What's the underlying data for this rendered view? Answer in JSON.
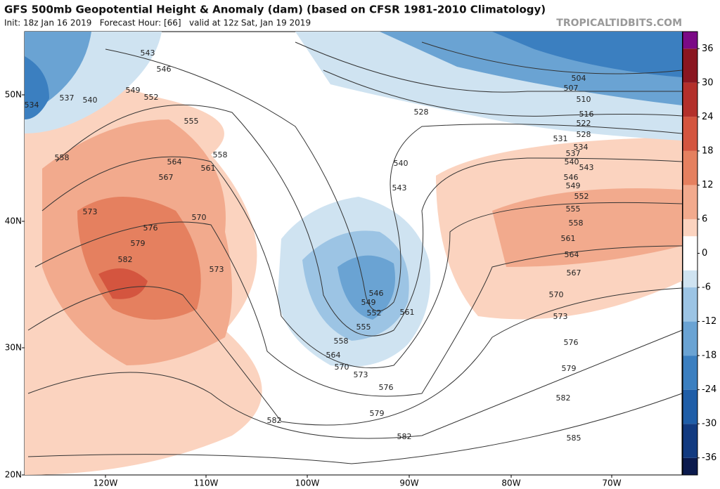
{
  "header": {
    "title": "GFS 500mb Geopotential Height & Anomaly (dam) (based on CFSR 1981-2010 Climatology)",
    "subtitle": "Init: 18z Jan 16 2019   Forecast Hour: [66]   valid at 12z Sat, Jan 19 2019",
    "site": "TROPICALTIDBITS.COM"
  },
  "map": {
    "lat_labels": [
      "50N",
      "40N",
      "30N",
      "20N"
    ],
    "lon_labels": [
      "120W",
      "110W",
      "100W",
      "90W",
      "80W",
      "70W"
    ],
    "contour_labels": [
      "543",
      "546",
      "549",
      "552",
      "537",
      "540",
      "534",
      "555",
      "558",
      "558",
      "564",
      "561",
      "567",
      "573",
      "570",
      "576",
      "579",
      "582",
      "573",
      "528",
      "504",
      "507",
      "510",
      "516",
      "522",
      "528",
      "531",
      "534",
      "537",
      "540",
      "543",
      "546",
      "549",
      "552",
      "555",
      "558",
      "561",
      "564",
      "567",
      "570",
      "573",
      "540",
      "543",
      "546",
      "549",
      "552",
      "555",
      "558",
      "561",
      "564",
      "570",
      "573",
      "576",
      "579",
      "582",
      "582",
      "576",
      "579",
      "582",
      "585"
    ]
  },
  "colorbar": {
    "lim": [
      -39,
      39
    ],
    "ticks": [
      36,
      30,
      24,
      18,
      12,
      6,
      0,
      -6,
      -12,
      -18,
      -24,
      -30,
      -36
    ],
    "levels": [
      -39,
      -36,
      -30,
      -24,
      -18,
      -12,
      -6,
      -3,
      3,
      6,
      12,
      18,
      24,
      30,
      36,
      39
    ],
    "colors": [
      "#0b1a4d",
      "#123a80",
      "#1f5ea8",
      "#3b7fc0",
      "#6aa3d3",
      "#9cc4e4",
      "#cfe3f1",
      "#ffffff",
      "#fbd3bf",
      "#f2aa8d",
      "#e5805f",
      "#d4553f",
      "#b3302b",
      "#8a1620",
      "#7b0a86"
    ]
  }
}
